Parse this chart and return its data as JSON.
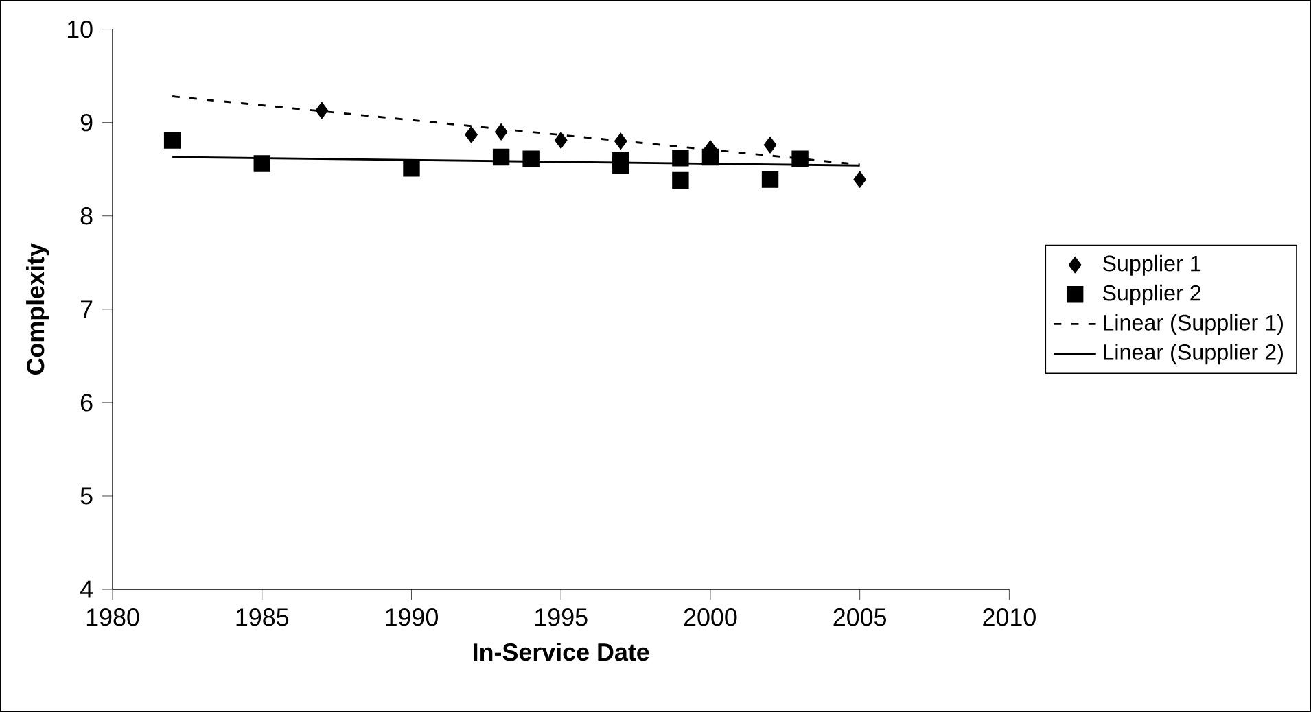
{
  "chart_data": {
    "type": "scatter",
    "xlabel": "In-Service Date",
    "ylabel": "Complexity",
    "xlim": [
      1980,
      2010
    ],
    "xticks": [
      1980,
      1985,
      1990,
      1995,
      2000,
      2005,
      2010
    ],
    "ylim": [
      4,
      10
    ],
    "yticks": [
      4,
      5,
      6,
      7,
      8,
      9,
      10
    ],
    "grid": false,
    "legend": "right",
    "series": [
      {
        "name": "Supplier 1",
        "marker": "diamond",
        "color": "#000000",
        "x": [
          1987,
          1992,
          1993,
          1995,
          1997,
          2000,
          2002,
          2005
        ],
        "values": [
          9.13,
          8.87,
          8.9,
          8.81,
          8.8,
          8.72,
          8.76,
          8.39
        ]
      },
      {
        "name": "Supplier 2",
        "marker": "square",
        "color": "#000000",
        "x": [
          1982,
          1985,
          1990,
          1993,
          1994,
          1997,
          1997,
          1999,
          1999,
          2000,
          2002,
          2003
        ],
        "values": [
          8.81,
          8.56,
          8.51,
          8.63,
          8.61,
          8.6,
          8.54,
          8.62,
          8.38,
          8.63,
          8.39,
          8.61
        ]
      },
      {
        "name": "Linear (Supplier 1)",
        "type": "line",
        "line_style": "dashed",
        "marker": "none",
        "color": "#000000",
        "x": [
          1982,
          2005
        ],
        "values": [
          9.28,
          8.55
        ]
      },
      {
        "name": "Linear (Supplier 2)",
        "type": "line",
        "line_style": "solid",
        "marker": "none",
        "color": "#000000",
        "x": [
          1982,
          2005
        ],
        "values": [
          8.63,
          8.54
        ]
      }
    ]
  }
}
